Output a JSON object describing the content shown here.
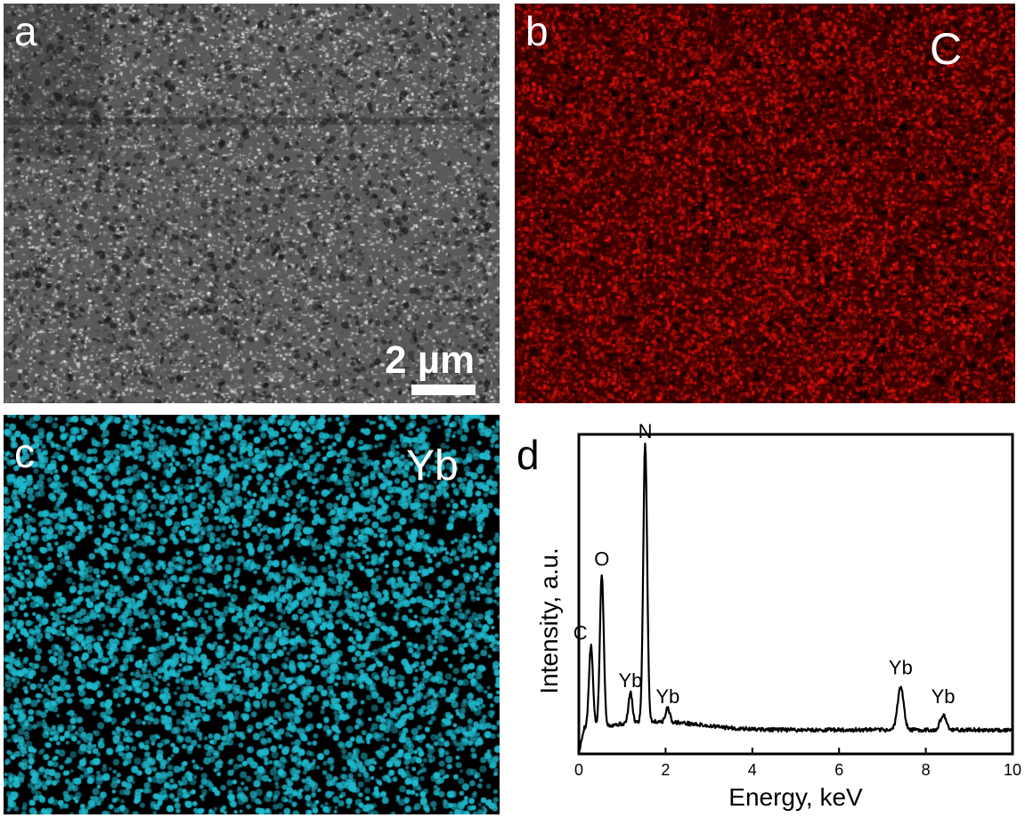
{
  "panels": {
    "a": {
      "label": "a",
      "scale_bar": "2 µm"
    },
    "b": {
      "label": "b",
      "element": "C",
      "map_color": "#e0201a"
    },
    "c": {
      "label": "c",
      "element": "Yb",
      "map_color": "#1fb8cc"
    },
    "d": {
      "label": "d"
    }
  },
  "chart_data": {
    "type": "line",
    "xlabel": "Energy, keV",
    "ylabel": "Intensity, a.u.",
    "xlim": [
      0,
      10
    ],
    "x_ticks": [
      "0",
      "2",
      "4",
      "6",
      "8",
      "10"
    ],
    "ylim": [
      0,
      1.0
    ],
    "grid": false,
    "baseline": 0.075,
    "peaks": [
      {
        "label": "C",
        "energy": 0.28,
        "height": 0.33
      },
      {
        "label": "O",
        "energy": 0.53,
        "height": 0.55
      },
      {
        "label": "Yb",
        "energy": 1.19,
        "height": 0.17
      },
      {
        "label": "N",
        "energy": 1.53,
        "height": 0.95
      },
      {
        "label": "Yb",
        "energy": 2.05,
        "height": 0.12
      },
      {
        "label": "Yb",
        "energy": 7.42,
        "height": 0.21
      },
      {
        "label": "Yb",
        "energy": 8.4,
        "height": 0.12
      }
    ]
  }
}
